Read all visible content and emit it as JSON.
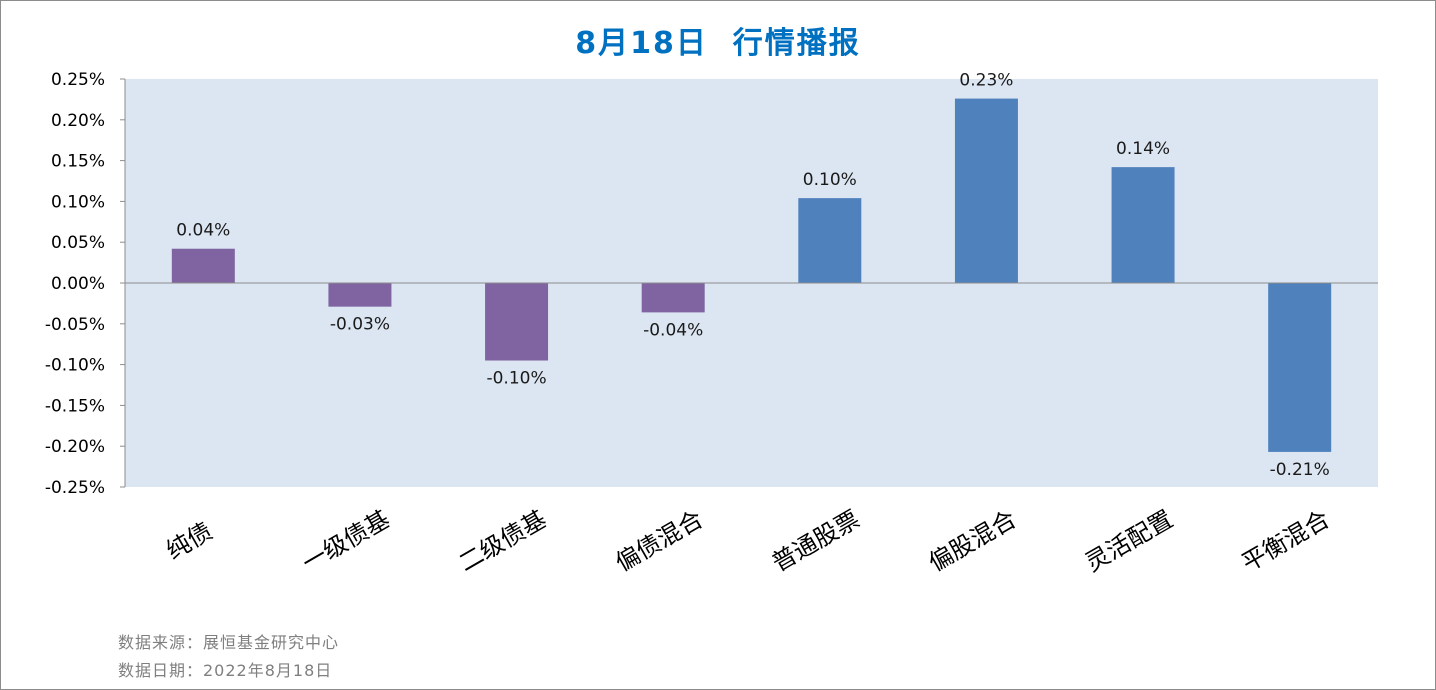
{
  "chart_data": {
    "type": "bar",
    "title": "8月18日  行情播报",
    "categories": [
      "纯债",
      "一级债基",
      "二级债基",
      "偏债混合",
      "普通股票",
      "偏股混合",
      "灵活配置",
      "平衡混合"
    ],
    "values": [
      0.04,
      -0.03,
      -0.1,
      -0.04,
      0.1,
      0.23,
      0.14,
      -0.21
    ],
    "value_labels": [
      "0.04%",
      "-0.03%",
      "-0.10%",
      "-0.04%",
      "0.10%",
      "0.23%",
      "0.14%",
      "-0.21%"
    ],
    "plot_values": [
      0.042,
      -0.029,
      -0.095,
      -0.036,
      0.104,
      0.226,
      0.142,
      -0.207
    ],
    "bar_colors": [
      "#8064a2",
      "#8064a2",
      "#8064a2",
      "#8064a2",
      "#4f81bd",
      "#4f81bd",
      "#4f81bd",
      "#4f81bd"
    ],
    "plot_background": "#dce6f2",
    "ylim": [
      -0.25,
      0.25
    ],
    "yticks": [
      0.25,
      0.2,
      0.15,
      0.1,
      0.05,
      0.0,
      -0.05,
      -0.1,
      -0.15,
      -0.2,
      -0.25
    ],
    "ytick_labels": [
      "0.25%",
      "0.20%",
      "0.15%",
      "0.10%",
      "0.05%",
      "0.00%",
      "-0.05%",
      "-0.10%",
      "-0.15%",
      "-0.20%",
      "-0.25%"
    ],
    "xlabel": "",
    "ylabel": "",
    "grid": false,
    "legend": "none"
  },
  "footer": {
    "source": "数据来源：展恒基金研究中心",
    "date": "数据日期：2022年8月18日"
  }
}
